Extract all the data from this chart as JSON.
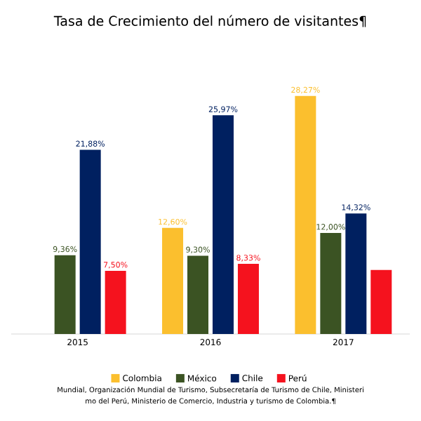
{
  "chart_data": {
    "type": "bar",
    "title": "Tasa de Crecimiento del número de visitantes¶",
    "categories": [
      "2015",
      "2016",
      "2017"
    ],
    "series": [
      {
        "name": "Colombia",
        "color": "#fbbf2e",
        "values": [
          null,
          12.6,
          28.27
        ],
        "value_labels": [
          null,
          "12,60%",
          "28,27%"
        ]
      },
      {
        "name": "México",
        "color": "#3b5323",
        "values": [
          9.36,
          9.3,
          12.0
        ],
        "value_labels": [
          "9,36%",
          "9,30%",
          "12,00%"
        ]
      },
      {
        "name": "Chile",
        "color": "#002060",
        "values": [
          21.88,
          25.97,
          14.32
        ],
        "value_labels": [
          "21,88%",
          "25,97%",
          "14,32%"
        ]
      },
      {
        "name": "Perú",
        "color": "#f5121e",
        "values": [
          7.5,
          8.33,
          7.6
        ],
        "value_labels": [
          "7,50%",
          "8,33%",
          null
        ]
      }
    ],
    "legend": "bottom",
    "annotations": [
      "Mundial, Organización Mundial de Turismo, Subsecretaría de Turismo de Chile, Ministeri",
      "mo del Perú, Ministerio de Comercio, Industria y turismo de Colombia.¶"
    ]
  }
}
